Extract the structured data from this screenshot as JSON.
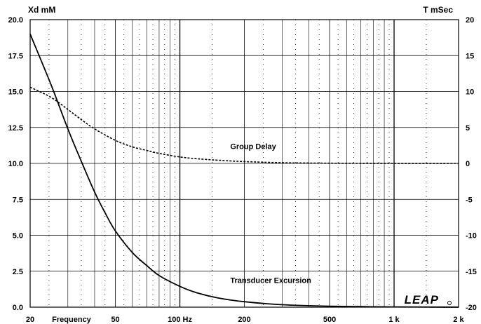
{
  "chart_data": {
    "type": "line",
    "x_scale": "log",
    "xlim": [
      20,
      2000
    ],
    "y_left_lim": [
      0,
      20
    ],
    "y_right_lim": [
      -20,
      20
    ],
    "y_left_label": "Xd mM",
    "y_right_label": "T mSec",
    "x_tick_labels": [
      {
        "value": 20,
        "label": "20"
      },
      {
        "value": 50,
        "label": "50"
      },
      {
        "value": 100,
        "label": "100 Hz"
      },
      {
        "value": 200,
        "label": "200"
      },
      {
        "value": 500,
        "label": "500"
      },
      {
        "value": 1000,
        "label": "1 k"
      },
      {
        "value": 2000,
        "label": "2 k"
      }
    ],
    "x_label": "Frequency",
    "y_left_ticks": [
      "0.0",
      "2.5",
      "5.0",
      "7.5",
      "10.0",
      "12.5",
      "15.0",
      "17.5",
      "20.0"
    ],
    "y_right_ticks": [
      "-20",
      "-15",
      "-10",
      "-5",
      "0",
      "5",
      "10",
      "15",
      "20"
    ],
    "grid": true,
    "series": [
      {
        "name": "Transducer Excursion",
        "axis": "left",
        "style": "solid",
        "x": [
          20,
          25,
          30,
          35,
          40,
          45,
          50,
          60,
          70,
          80,
          100,
          120,
          150,
          200,
          300,
          500,
          1000,
          2000
        ],
        "y": [
          19.0,
          15.5,
          12.4,
          10.0,
          8.0,
          6.5,
          5.3,
          3.8,
          2.9,
          2.2,
          1.45,
          1.0,
          0.65,
          0.38,
          0.17,
          0.07,
          0.02,
          0.0
        ]
      },
      {
        "name": "Group Delay",
        "axis": "right",
        "style": "dashed",
        "x": [
          20,
          25,
          30,
          35,
          40,
          50,
          60,
          70,
          80,
          100,
          120,
          150,
          200,
          300,
          500,
          1000,
          2000
        ],
        "y": [
          10.6,
          9.2,
          7.5,
          6.0,
          4.8,
          3.2,
          2.3,
          1.8,
          1.4,
          0.9,
          0.65,
          0.45,
          0.25,
          0.1,
          0.03,
          0.0,
          0.0
        ]
      }
    ],
    "annotations": [
      {
        "text": "Group Delay",
        "x": 150,
        "y_left": 10.8
      },
      {
        "text": "Transducer Excursion",
        "x": 150,
        "y_left": 1.5
      }
    ]
  },
  "logo": "LEAP"
}
